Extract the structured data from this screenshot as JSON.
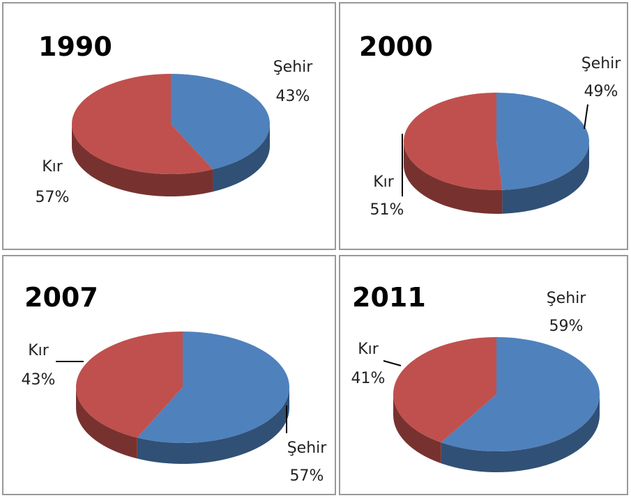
{
  "chart_data": [
    {
      "type": "pie",
      "title": "1990",
      "categories": [
        "Şehir",
        "Kır"
      ],
      "values": [
        43,
        57
      ],
      "value_labels": [
        "43%",
        "57%"
      ],
      "colors": [
        "#4f81bd",
        "#c0504d"
      ]
    },
    {
      "type": "pie",
      "title": "2000",
      "categories": [
        "Şehir",
        "Kır"
      ],
      "values": [
        49,
        51
      ],
      "value_labels": [
        "49%",
        "51%"
      ],
      "colors": [
        "#4f81bd",
        "#c0504d"
      ]
    },
    {
      "type": "pie",
      "title": "2007",
      "categories": [
        "Şehir",
        "Kır"
      ],
      "values": [
        57,
        43
      ],
      "value_labels": [
        "57%",
        "43%"
      ],
      "colors": [
        "#4f81bd",
        "#c0504d"
      ]
    },
    {
      "type": "pie",
      "title": "2011",
      "categories": [
        "Şehir",
        "Kır"
      ],
      "values": [
        59,
        41
      ],
      "value_labels": [
        "59%",
        "41%"
      ],
      "colors": [
        "#4f81bd",
        "#c0504d"
      ]
    }
  ]
}
